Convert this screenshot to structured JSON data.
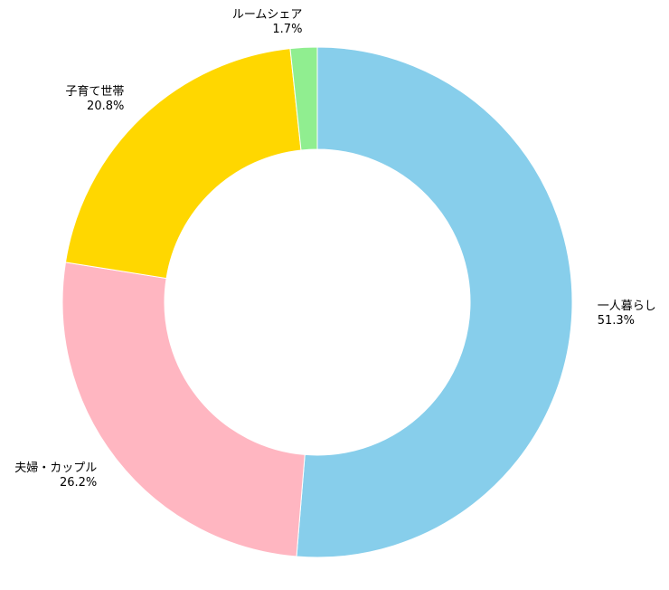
{
  "chart_data": {
    "type": "donut",
    "categories": [
      "一人暮らし",
      "夫婦・カップル",
      "子育て世帯",
      "ルームシェア"
    ],
    "values": [
      51.3,
      26.2,
      20.8,
      1.7
    ],
    "value_labels": [
      "51.3%",
      "26.2%",
      "20.8%",
      "1.7%"
    ],
    "colors": [
      "#87ceeb",
      "#ffb6c1",
      "#ffd700",
      "#90ee90"
    ]
  }
}
